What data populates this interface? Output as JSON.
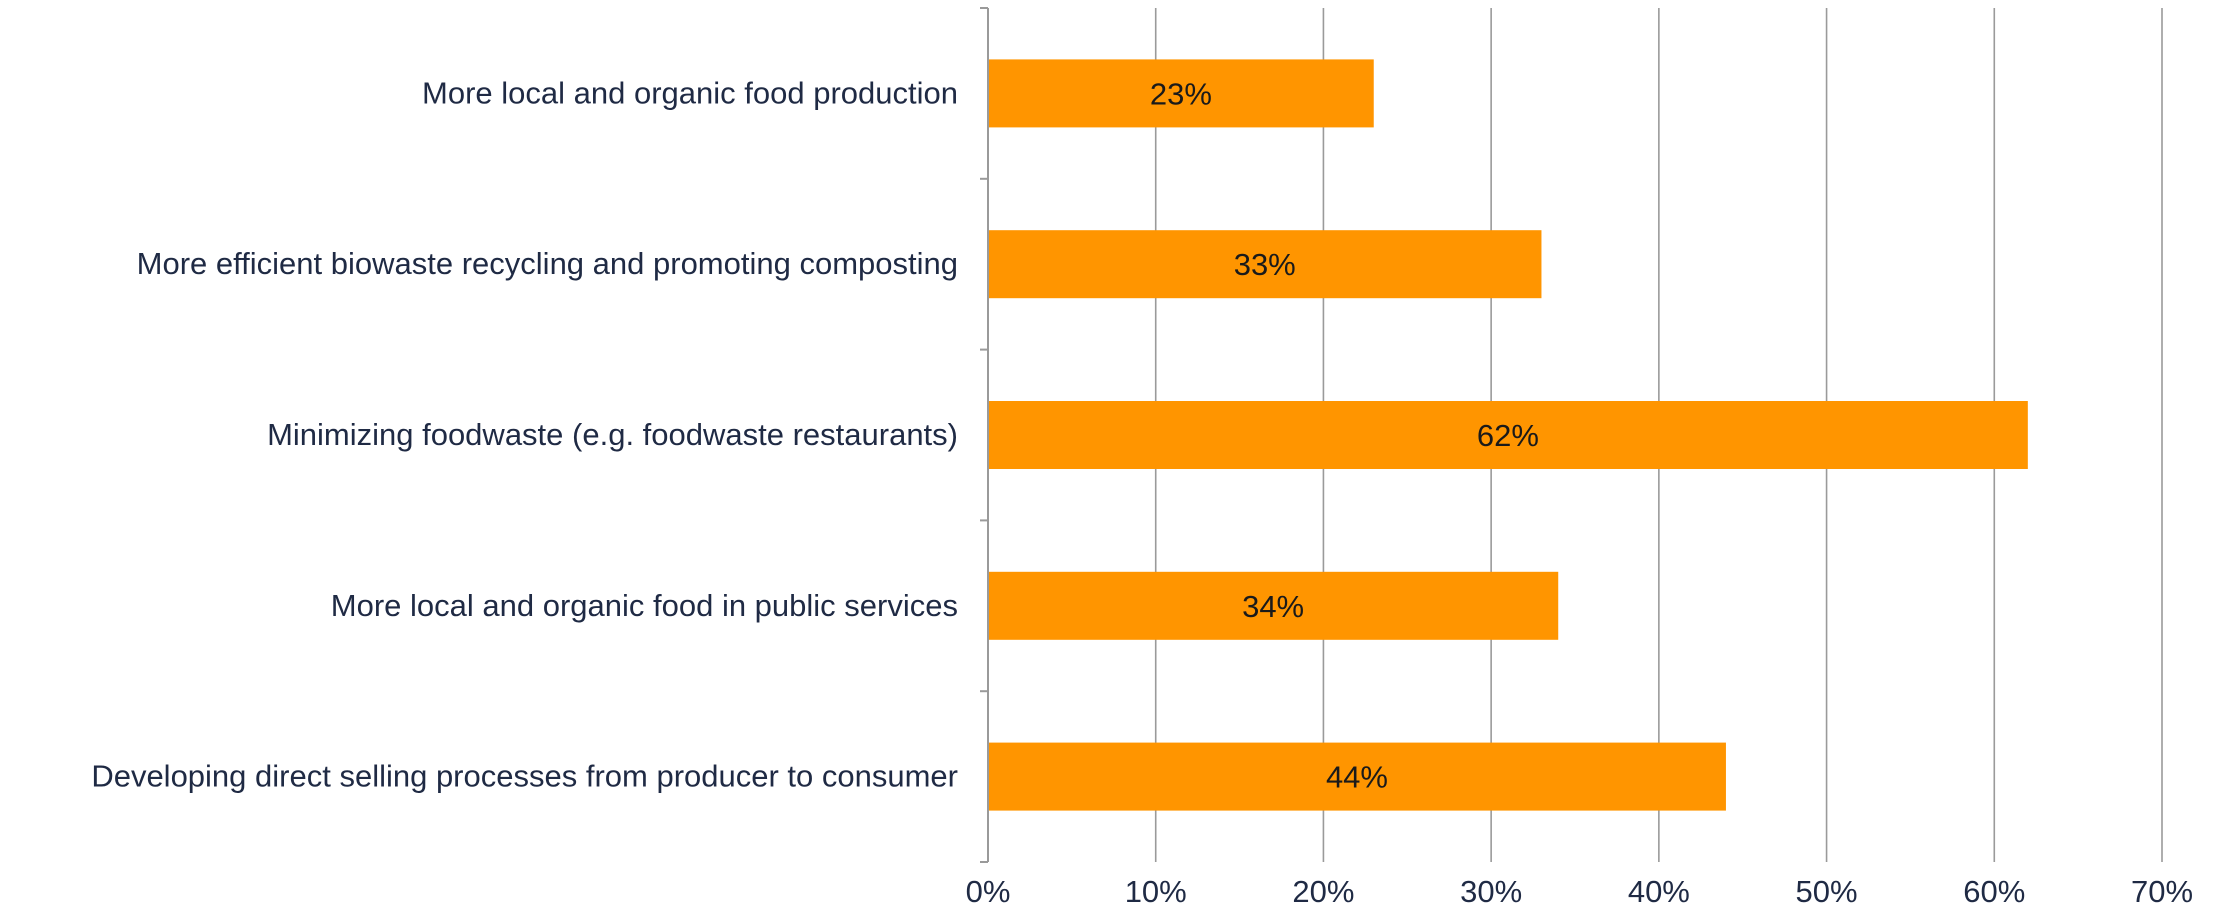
{
  "chart_data": {
    "type": "bar",
    "orientation": "horizontal",
    "categories": [
      "More local and organic food production",
      "More efficient biowaste recycling and promoting composting",
      "Minimizing foodwaste (e.g. foodwaste restaurants)",
      "More local and organic food in public services",
      "Developing direct selling processes from producer to consumer"
    ],
    "values": [
      23,
      33,
      62,
      34,
      44
    ],
    "data_labels": [
      "23%",
      "33%",
      "62%",
      "34%",
      "44%"
    ],
    "x_ticks": [
      "0%",
      "10%",
      "20%",
      "30%",
      "40%",
      "50%",
      "60%",
      "70%"
    ],
    "xlim": [
      0,
      70
    ],
    "grid": "vertical",
    "legend": "none",
    "title": "",
    "xlabel": "",
    "ylabel": "",
    "colors": {
      "bar": "#FF9500",
      "grid": "#9a9a9a",
      "text": "#1f2a44"
    }
  }
}
